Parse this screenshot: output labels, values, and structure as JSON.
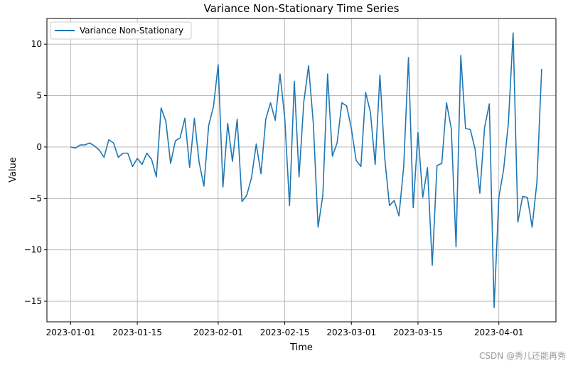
{
  "chart_data": {
    "type": "line",
    "title": "Variance Non-Stationary Time Series",
    "xlabel": "Time",
    "ylabel": "Value",
    "x_start": "2023-01-01",
    "x_ticks": [
      "2023-01-01",
      "2023-01-15",
      "2023-02-01",
      "2023-02-15",
      "2023-03-01",
      "2023-03-15",
      "2023-04-01"
    ],
    "y_ticks": [
      10,
      5,
      0,
      -5,
      -10,
      -15
    ],
    "xlim": [
      "2022-12-27",
      "2023-04-13"
    ],
    "ylim": [
      -17,
      12.5
    ],
    "grid": true,
    "legend_position": "top-left",
    "series": [
      {
        "name": "Variance Non-Stationary",
        "color": "#1f77b4",
        "x": [
          "2023-01-01",
          "2023-01-02",
          "2023-01-03",
          "2023-01-04",
          "2023-01-05",
          "2023-01-06",
          "2023-01-07",
          "2023-01-08",
          "2023-01-09",
          "2023-01-10",
          "2023-01-11",
          "2023-01-12",
          "2023-01-13",
          "2023-01-14",
          "2023-01-15",
          "2023-01-16",
          "2023-01-17",
          "2023-01-18",
          "2023-01-19",
          "2023-01-20",
          "2023-01-21",
          "2023-01-22",
          "2023-01-23",
          "2023-01-24",
          "2023-01-25",
          "2023-01-26",
          "2023-01-27",
          "2023-01-28",
          "2023-01-29",
          "2023-01-30",
          "2023-01-31",
          "2023-02-01",
          "2023-02-02",
          "2023-02-03",
          "2023-02-04",
          "2023-02-05",
          "2023-02-06",
          "2023-02-07",
          "2023-02-08",
          "2023-02-09",
          "2023-02-10",
          "2023-02-11",
          "2023-02-12",
          "2023-02-13",
          "2023-02-14",
          "2023-02-15",
          "2023-02-16",
          "2023-02-17",
          "2023-02-18",
          "2023-02-19",
          "2023-02-20",
          "2023-02-21",
          "2023-02-22",
          "2023-02-23",
          "2023-02-24",
          "2023-02-25",
          "2023-02-26",
          "2023-02-27",
          "2023-02-28",
          "2023-03-01",
          "2023-03-02",
          "2023-03-03",
          "2023-03-04",
          "2023-03-05",
          "2023-03-06",
          "2023-03-07",
          "2023-03-08",
          "2023-03-09",
          "2023-03-10",
          "2023-03-11",
          "2023-03-12",
          "2023-03-13",
          "2023-03-14",
          "2023-03-15",
          "2023-03-16",
          "2023-03-17",
          "2023-03-18",
          "2023-03-19",
          "2023-03-20",
          "2023-03-21",
          "2023-03-22",
          "2023-03-23",
          "2023-03-24",
          "2023-03-25",
          "2023-03-26",
          "2023-03-27",
          "2023-03-28",
          "2023-03-29",
          "2023-03-30",
          "2023-03-31",
          "2023-04-01",
          "2023-04-02",
          "2023-04-03",
          "2023-04-04",
          "2023-04-05",
          "2023-04-06",
          "2023-04-07",
          "2023-04-08",
          "2023-04-09",
          "2023-04-10"
        ],
        "values": [
          0.0,
          -0.1,
          0.2,
          0.2,
          0.4,
          0.1,
          -0.3,
          -1.0,
          0.7,
          0.4,
          -1.0,
          -0.6,
          -0.6,
          -1.9,
          -1.1,
          -1.7,
          -0.6,
          -1.2,
          -2.9,
          3.8,
          2.5,
          -1.6,
          0.6,
          0.9,
          2.8,
          -2.0,
          2.8,
          -1.5,
          -3.8,
          2.1,
          3.9,
          8.0,
          -3.9,
          2.3,
          -1.4,
          2.7,
          -5.3,
          -4.7,
          -3.0,
          0.3,
          -2.6,
          2.7,
          4.3,
          2.6,
          7.1,
          2.8,
          -5.7,
          6.4,
          -2.9,
          4.4,
          7.9,
          2.3,
          -7.8,
          -4.7,
          7.1,
          -0.9,
          0.4,
          4.3,
          4.0,
          1.8,
          -1.3,
          -1.9,
          5.3,
          3.4,
          -1.7,
          7.0,
          -1.0,
          -5.7,
          -5.2,
          -6.7,
          -1.9,
          8.7,
          -5.9,
          1.4,
          -4.9,
          -2.0,
          -11.5,
          -1.8,
          -1.6,
          4.3,
          1.8,
          -9.7,
          8.9,
          1.8,
          1.7,
          -0.2,
          -4.5,
          1.9,
          4.2,
          -15.6,
          -4.9,
          -2.2,
          2.3,
          11.1,
          -7.3,
          -4.8,
          -4.9,
          -7.8,
          -3.4,
          7.6
        ]
      }
    ]
  },
  "watermark": "CSDN @秀儿还能再秀"
}
